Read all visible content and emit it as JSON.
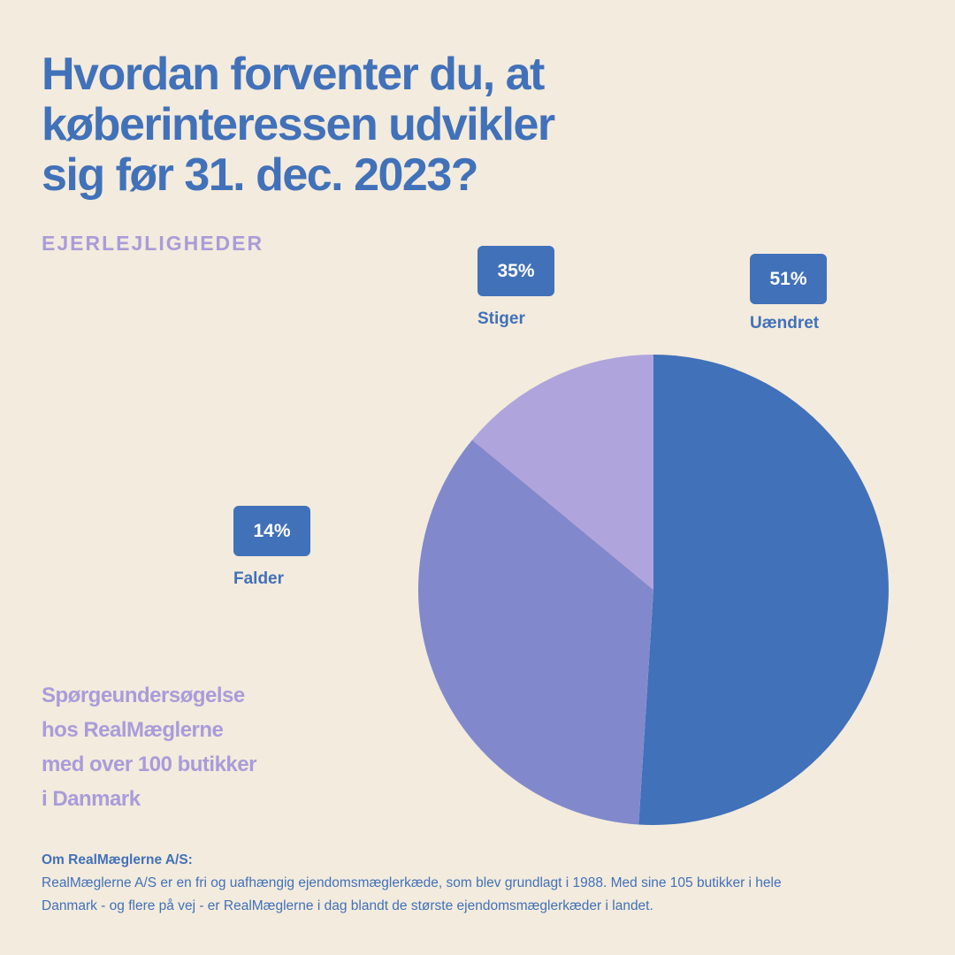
{
  "title_lines": [
    "Hvordan forventer du, at",
    "køberinteressen udvikler",
    "sig før 31. dec. 2023?"
  ],
  "subtitle": "EJERLEJLIGHEDER",
  "survey_lines": [
    "Spørgeundersøgelse",
    "hos RealMæglerne",
    "med over 100 butikker",
    "i Danmark"
  ],
  "about": {
    "heading": "Om RealMæglerne A/S:",
    "lines": [
      "RealMæglerne A/S er en fri og uafhængig ejendomsmæglerkæde, som blev grundlagt i 1988. Med sine 105 butikker i hele",
      "Danmark - og flere på vej - er RealMæglerne i dag blandt de største ejendomsmæglerkæder i landet."
    ]
  },
  "colors": {
    "background": "#f3ebdd",
    "primary_blue": "#4171b9",
    "mid_purple": "#8189cc",
    "light_purple": "#b0a4dc"
  },
  "chart_data": {
    "type": "pie",
    "title": "Hvordan forventer du, at køberinteressen udvikler sig før 31. dec. 2023?",
    "subtitle": "EJERLEJLIGHEDER",
    "slices": [
      {
        "label": "Uændret",
        "value": 51,
        "display": "51%",
        "color": "#4171b9"
      },
      {
        "label": "Stiger",
        "value": 35,
        "display": "35%",
        "color": "#8189cc"
      },
      {
        "label": "Falder",
        "value": 14,
        "display": "14%",
        "color": "#b0a4dc"
      }
    ],
    "start": "12 o'clock",
    "direction": "clockwise",
    "legend": "none"
  }
}
